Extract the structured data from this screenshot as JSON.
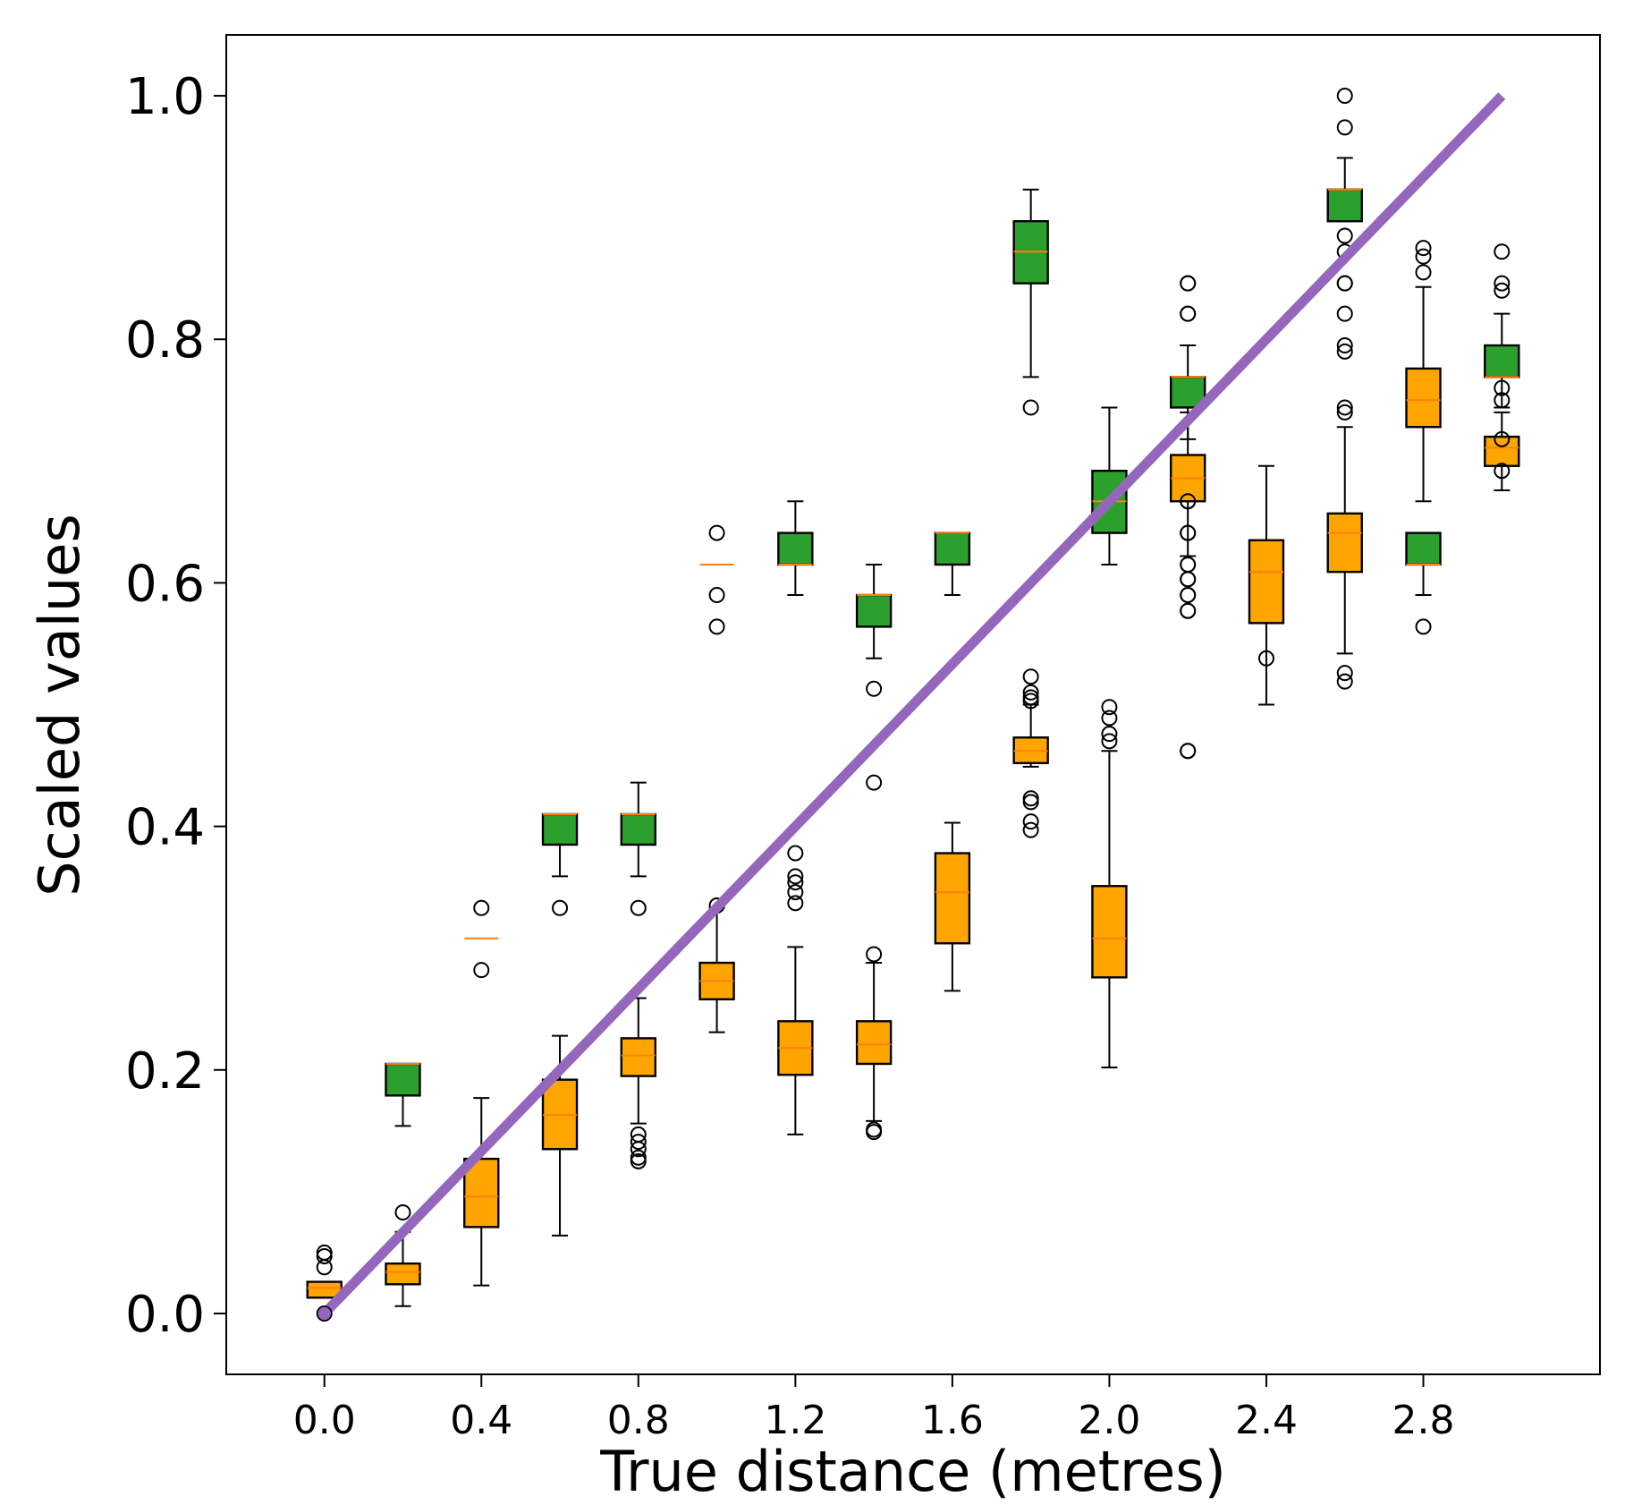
{
  "chart_data": {
    "type": "box",
    "title": "",
    "xlabel": "True distance (metres)",
    "ylabel": "Scaled values",
    "xlim": [
      -0.25,
      3.25
    ],
    "ylim": [
      -0.05,
      1.05
    ],
    "x_ticks": [
      "0.0",
      "0.4",
      "0.8",
      "1.2",
      "1.6",
      "2.0",
      "2.4",
      "2.8"
    ],
    "y_ticks": [
      "0.0",
      "0.2",
      "0.4",
      "0.6",
      "0.8",
      "1.0"
    ],
    "colors": {
      "green": "#2ca02c",
      "orange": "#ffa500",
      "median": "#ff7f0e",
      "reference_line": "#9467bd"
    },
    "reference_line": {
      "x": [
        0.0,
        3.0
      ],
      "y": [
        0.0,
        1.0
      ]
    },
    "series": [
      {
        "name": "green",
        "boxes": [
          {
            "x": 0.2,
            "whislo": 0.154,
            "q1": 0.179,
            "med": 0.205,
            "q3": 0.205,
            "whishi": 0.205,
            "fliers": []
          },
          {
            "x": 0.6,
            "whislo": 0.359,
            "q1": 0.385,
            "med": 0.41,
            "q3": 0.41,
            "whishi": 0.41,
            "fliers": [
              0.333
            ]
          },
          {
            "x": 0.8,
            "whislo": 0.359,
            "q1": 0.385,
            "med": 0.41,
            "q3": 0.41,
            "whishi": 0.436,
            "fliers": [
              0.333
            ]
          },
          {
            "x": 1.2,
            "whislo": 0.59,
            "q1": 0.615,
            "med": 0.615,
            "q3": 0.641,
            "whishi": 0.667,
            "fliers": []
          },
          {
            "x": 1.4,
            "whislo": 0.538,
            "q1": 0.564,
            "med": 0.59,
            "q3": 0.59,
            "whishi": 0.615,
            "fliers": [
              0.513,
              0.436
            ]
          },
          {
            "x": 1.6,
            "whislo": 0.59,
            "q1": 0.615,
            "med": 0.641,
            "q3": 0.641,
            "whishi": 0.641,
            "fliers": []
          },
          {
            "x": 1.8,
            "whislo": 0.769,
            "q1": 0.846,
            "med": 0.872,
            "q3": 0.897,
            "whishi": 0.923,
            "fliers": [
              0.744
            ]
          },
          {
            "x": 2.0,
            "whislo": 0.615,
            "q1": 0.641,
            "med": 0.667,
            "q3": 0.692,
            "whishi": 0.744,
            "fliers": []
          },
          {
            "x": 2.2,
            "whislo": 0.718,
            "q1": 0.744,
            "med": 0.769,
            "q3": 0.769,
            "whishi": 0.795,
            "fliers": [
              0.846,
              0.821,
              0.667,
              0.641,
              0.615,
              0.603,
              0.59,
              0.577,
              0.462
            ]
          },
          {
            "x": 2.6,
            "whislo": 0.897,
            "q1": 0.897,
            "med": 0.923,
            "q3": 0.923,
            "whishi": 0.949,
            "fliers": [
              1.0,
              0.974,
              0.885,
              0.872,
              0.846,
              0.846,
              0.821,
              0.795,
              0.79,
              0.744,
              0.74
            ]
          },
          {
            "x": 2.8,
            "whislo": 0.59,
            "q1": 0.615,
            "med": 0.615,
            "q3": 0.641,
            "whishi": 0.641,
            "fliers": [
              0.564
            ]
          },
          {
            "x": 3.0,
            "whislo": 0.744,
            "q1": 0.769,
            "med": 0.769,
            "q3": 0.795,
            "whishi": 0.821,
            "fliers": [
              0.872,
              0.846,
              0.84,
              0.76,
              0.75
            ]
          }
        ]
      },
      {
        "name": "orange",
        "boxes": [
          {
            "x": 0.0,
            "whislo": 0.013,
            "q1": 0.013,
            "med": 0.021,
            "q3": 0.026,
            "whishi": 0.026,
            "fliers": [
              0.05,
              0.047,
              0.038,
              0.0
            ]
          },
          {
            "x": 0.2,
            "whislo": 0.006,
            "q1": 0.024,
            "med": 0.034,
            "q3": 0.041,
            "whishi": 0.067,
            "fliers": [
              0.083
            ]
          },
          {
            "x": 0.4,
            "whislo": 0.023,
            "q1": 0.071,
            "med": 0.096,
            "q3": 0.127,
            "whishi": 0.177,
            "fliers": []
          },
          {
            "x": 0.6,
            "whislo": 0.064,
            "q1": 0.135,
            "med": 0.163,
            "q3": 0.192,
            "whishi": 0.228,
            "fliers": []
          },
          {
            "x": 0.8,
            "whislo": 0.156,
            "q1": 0.195,
            "med": 0.212,
            "q3": 0.226,
            "whishi": 0.259,
            "fliers": [
              0.147,
              0.141,
              0.135,
              0.128,
              0.125
            ]
          },
          {
            "x": 1.0,
            "whislo": 0.231,
            "q1": 0.258,
            "med": 0.273,
            "q3": 0.288,
            "whishi": 0.333,
            "fliers": [
              0.335
            ]
          },
          {
            "x": 1.2,
            "whislo": 0.147,
            "q1": 0.196,
            "med": 0.218,
            "q3": 0.24,
            "whishi": 0.301,
            "fliers": [
              0.378,
              0.359,
              0.354,
              0.346,
              0.337
            ]
          },
          {
            "x": 1.4,
            "whislo": 0.158,
            "q1": 0.205,
            "med": 0.221,
            "q3": 0.24,
            "whishi": 0.288,
            "fliers": [
              0.295,
              0.151,
              0.149
            ]
          },
          {
            "x": 1.6,
            "whislo": 0.265,
            "q1": 0.304,
            "med": 0.346,
            "q3": 0.378,
            "whishi": 0.403,
            "fliers": []
          },
          {
            "x": 1.8,
            "whislo": 0.449,
            "q1": 0.452,
            "med": 0.462,
            "q3": 0.473,
            "whishi": 0.5,
            "fliers": [
              0.523,
              0.51,
              0.506,
              0.503,
              0.423,
              0.42,
              0.404,
              0.397
            ]
          },
          {
            "x": 2.0,
            "whislo": 0.202,
            "q1": 0.276,
            "med": 0.308,
            "q3": 0.351,
            "whishi": 0.462,
            "fliers": [
              0.498,
              0.489,
              0.476,
              0.47
            ]
          },
          {
            "x": 2.2,
            "whislo": 0.622,
            "q1": 0.667,
            "med": 0.686,
            "q3": 0.705,
            "whishi": 0.74,
            "fliers": [
              0.846,
              0.821,
              0.667,
              0.641,
              0.615,
              0.603,
              0.59,
              0.577,
              0.462
            ]
          },
          {
            "x": 2.4,
            "whislo": 0.5,
            "q1": 0.567,
            "med": 0.609,
            "q3": 0.635,
            "whishi": 0.696,
            "fliers": [
              0.538
            ]
          },
          {
            "x": 2.6,
            "whislo": 0.542,
            "q1": 0.609,
            "med": 0.641,
            "q3": 0.657,
            "whishi": 0.728,
            "fliers": [
              0.526,
              0.519
            ]
          },
          {
            "x": 2.8,
            "whislo": 0.667,
            "q1": 0.728,
            "med": 0.75,
            "q3": 0.776,
            "whishi": 0.843,
            "fliers": [
              0.875,
              0.868,
              0.855
            ]
          },
          {
            "x": 3.0,
            "whislo": 0.676,
            "q1": 0.696,
            "med": 0.711,
            "q3": 0.72,
            "whishi": 0.74,
            "fliers": [
              0.718,
              0.692
            ]
          }
        ]
      },
      {
        "name": "orange-degenerate",
        "boxes": [
          {
            "x": 0.4,
            "whislo": 0.308,
            "q1": 0.308,
            "med": 0.308,
            "q3": 0.308,
            "whishi": 0.308,
            "fliers": [
              0.333,
              0.282
            ]
          },
          {
            "x": 1.0,
            "whislo": 0.615,
            "q1": 0.615,
            "med": 0.615,
            "q3": 0.615,
            "whishi": 0.615,
            "fliers": [
              0.641,
              0.59,
              0.564
            ]
          }
        ]
      }
    ]
  }
}
